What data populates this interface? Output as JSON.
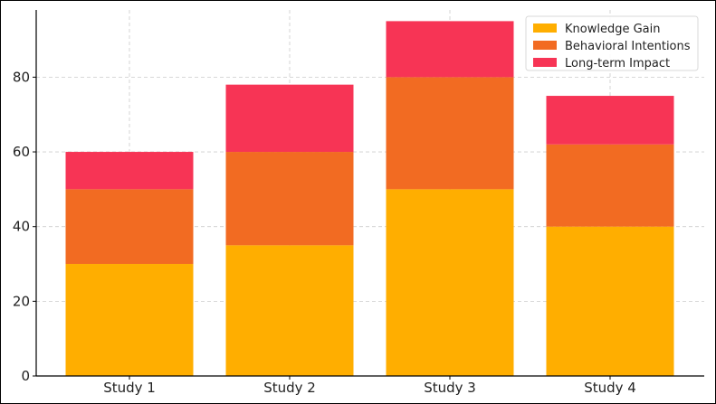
{
  "chart_data": {
    "type": "bar",
    "stacked": true,
    "title": "",
    "xlabel": "",
    "ylabel": "",
    "categories": [
      "Study 1",
      "Study 2",
      "Study 3",
      "Study 4"
    ],
    "series": [
      {
        "name": "Knowledge Gain",
        "values": [
          30,
          35,
          50,
          40
        ],
        "color": "#FFAE00"
      },
      {
        "name": "Behavioral Intentions",
        "values": [
          20,
          25,
          30,
          22
        ],
        "color": "#F26B22"
      },
      {
        "name": "Long-term Impact",
        "values": [
          10,
          18,
          15,
          13
        ],
        "color": "#F73455"
      }
    ],
    "ylim": [
      0,
      98
    ],
    "yticks": [
      "0",
      "20",
      "40",
      "60",
      "80"
    ],
    "grid": true,
    "legend_position": "top-right"
  }
}
